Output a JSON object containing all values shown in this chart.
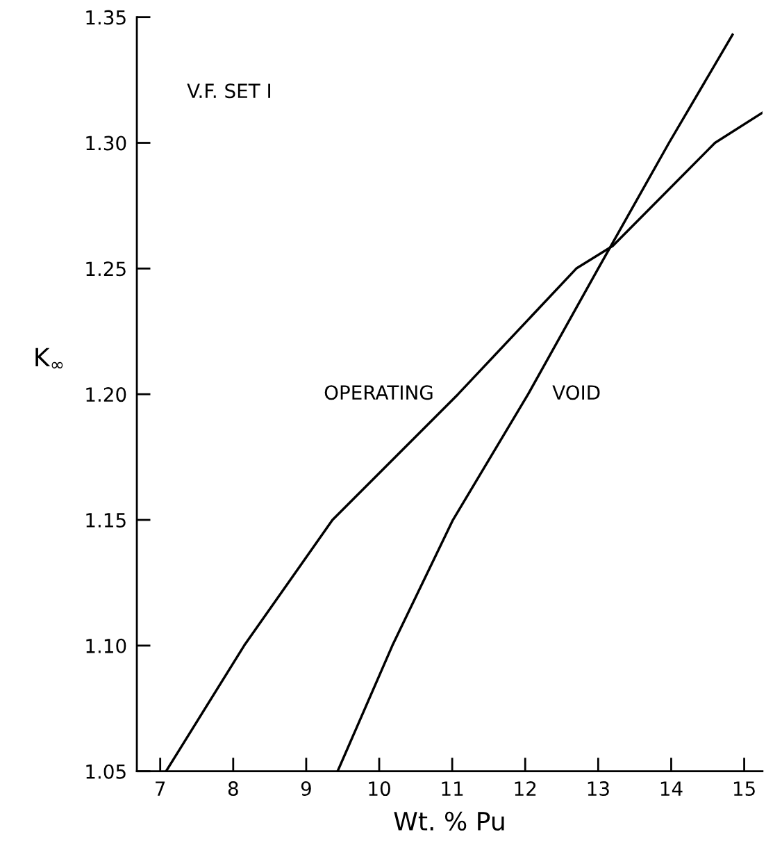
{
  "chart_data": {
    "type": "line",
    "xlabel": "Wt. % Pu",
    "ylabel": "K$_{∞}$",
    "xlim": [
      6.68,
      15.25
    ],
    "ylim": [
      1.05,
      1.35
    ],
    "xticks": [
      7,
      8,
      9,
      10,
      11,
      12,
      13,
      14,
      15
    ],
    "yticks": [
      {
        "value": 1.05,
        "label": "1.05"
      },
      {
        "value": 1.1,
        "label": "1.10"
      },
      {
        "value": 1.15,
        "label": "1.15"
      },
      {
        "value": 1.2,
        "label": "1.20"
      },
      {
        "value": 1.25,
        "label": "1.25"
      },
      {
        "value": 1.3,
        "label": "1.30"
      },
      {
        "value": 1.35,
        "label": "1.35"
      }
    ],
    "grid": false,
    "legend": false,
    "marker": "none",
    "line_style": "solid",
    "series": [
      {
        "name": "OPERATING",
        "color": "#000000",
        "x": [
          7.08,
          8.15,
          9.36,
          11.08,
          12.7,
          13.2,
          14.6,
          15.25
        ],
        "values": [
          1.05,
          1.1,
          1.15,
          1.2,
          1.25,
          1.259,
          1.3,
          1.312
        ]
      },
      {
        "name": "VOID",
        "color": "#000000",
        "x": [
          9.43,
          10.18,
          11.01,
          12.04,
          13.0,
          13.97,
          14.84
        ],
        "values": [
          1.05,
          1.1,
          1.15,
          1.2,
          1.25,
          1.3,
          1.343
        ]
      }
    ],
    "annotations": [
      "V.F. SET I"
    ]
  }
}
